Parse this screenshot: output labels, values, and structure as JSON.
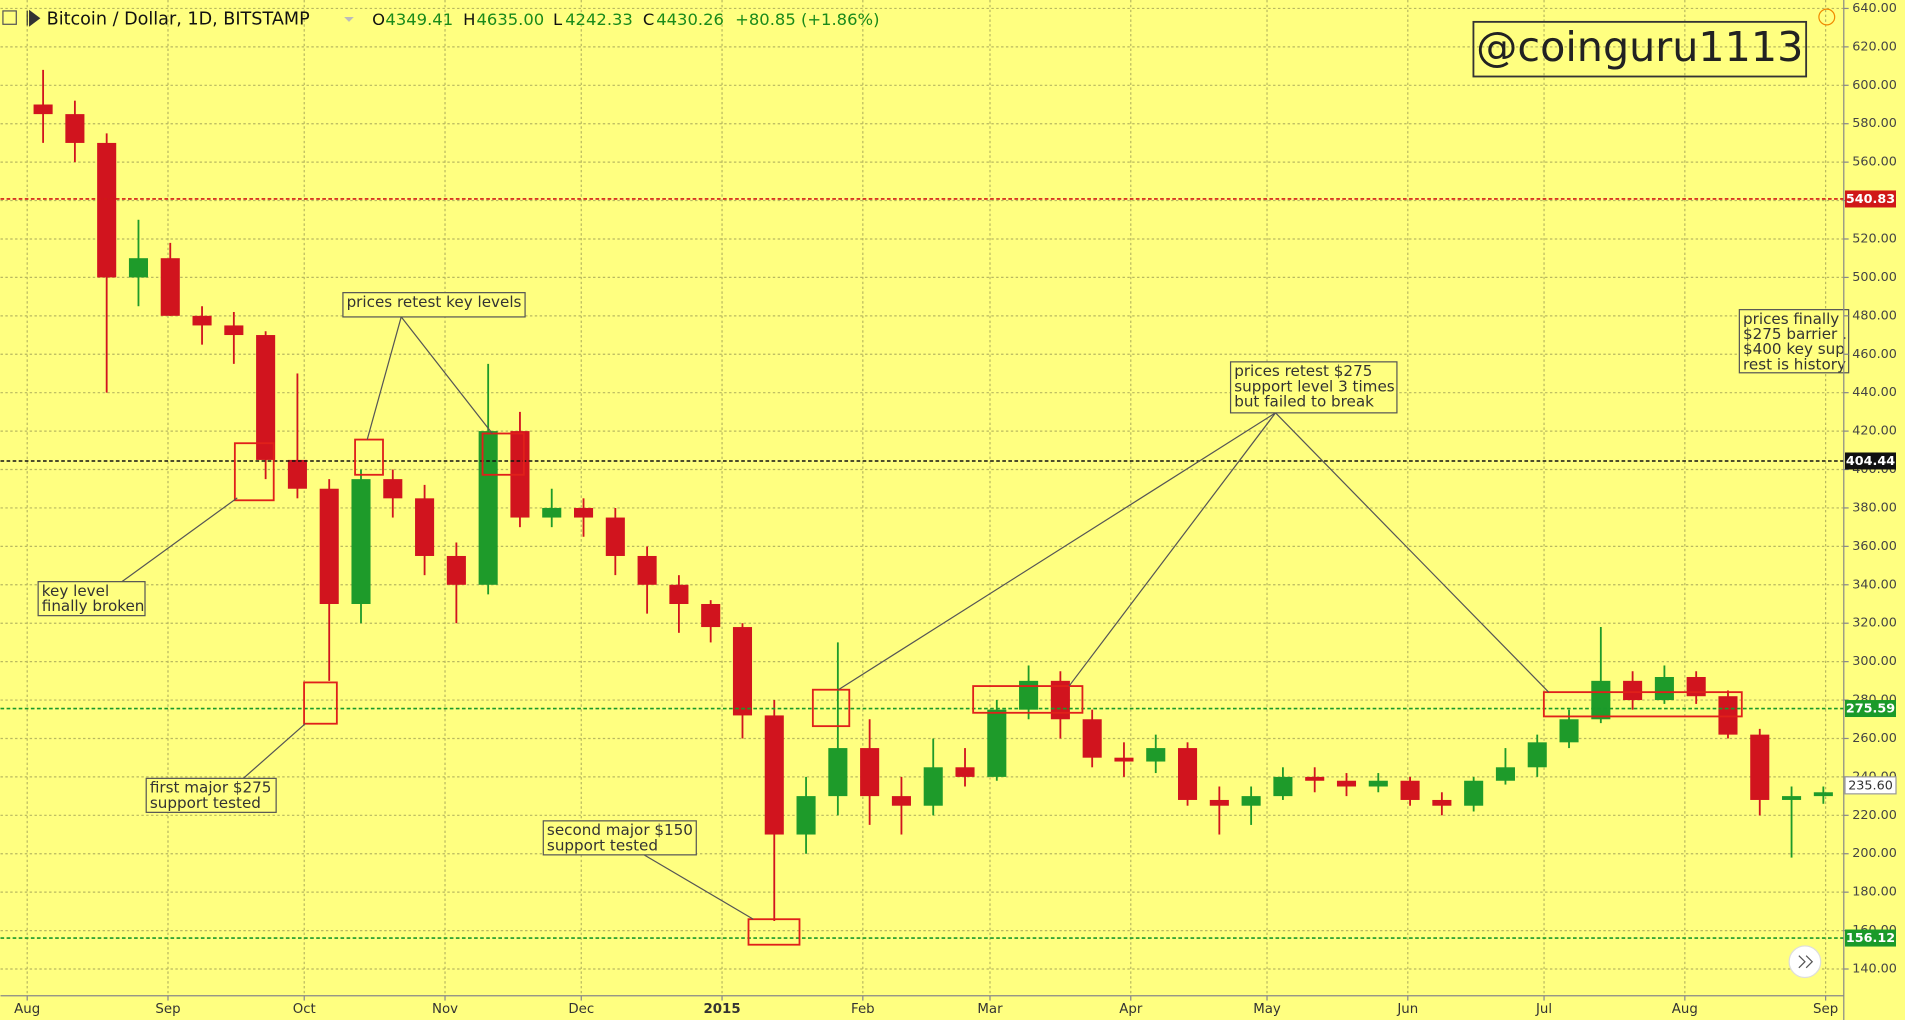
{
  "chart_data": {
    "type": "candlestick",
    "title": "Bitcoin / Dollar, 1D, BITSTAMP",
    "header": {
      "open_label": "O",
      "open": "4349.41",
      "high_label": "H",
      "high": "4635.00",
      "low_label": "L",
      "low": "4242.33",
      "close_label": "C",
      "close": "4430.26",
      "change": "+80.85 (+1.86%)"
    },
    "watermark": "@coinguru1113",
    "up_color": "#1e9b2a",
    "down_color": "#d1141e",
    "x": [
      3.5,
      10.5,
      17.5,
      24.5,
      31.5,
      38.5,
      45.5,
      52.5,
      59.5,
      66.5,
      73.5,
      80.5,
      87.5,
      94.5,
      101.5,
      108.5,
      115.5,
      122.5,
      129.5,
      136.5,
      143.5,
      150.5,
      157.5,
      164.5,
      171.5,
      178.5,
      185.5,
      192.5,
      199.5,
      206.5,
      213.5,
      220.5,
      227.5,
      234.5,
      241.5,
      248.5,
      255.5,
      262.5,
      269.5,
      276.5,
      283.5,
      290.5,
      297.5,
      304.5,
      311.5,
      318.5,
      325.5,
      332.5,
      339.5,
      346.5,
      353.5,
      360.5,
      367.5,
      374.5,
      381.5,
      388.5,
      395.5
    ],
    "open": [
      590,
      585,
      570,
      500,
      510,
      480,
      475,
      470,
      405,
      390,
      330,
      395,
      385,
      355,
      340,
      420,
      375,
      380,
      375,
      355,
      340,
      330,
      318,
      272,
      210,
      230,
      255,
      230,
      225,
      245,
      240,
      275,
      290,
      270,
      250,
      248,
      255,
      228,
      225,
      230,
      240,
      238,
      235,
      238,
      228,
      225,
      238,
      245,
      258,
      270,
      290,
      280,
      292,
      282,
      262,
      228,
      230
    ],
    "high": [
      608,
      592,
      575,
      530,
      518,
      485,
      482,
      472,
      450,
      395,
      400,
      400,
      392,
      362,
      455,
      430,
      390,
      385,
      380,
      360,
      345,
      332,
      320,
      280,
      240,
      310,
      270,
      240,
      260,
      255,
      280,
      298,
      295,
      275,
      258,
      262,
      258,
      235,
      235,
      245,
      245,
      242,
      242,
      240,
      232,
      240,
      255,
      262,
      275,
      318,
      295,
      298,
      295,
      285,
      265,
      235,
      235
    ],
    "low": [
      570,
      560,
      440,
      485,
      480,
      465,
      455,
      395,
      385,
      290,
      320,
      375,
      345,
      320,
      335,
      370,
      370,
      365,
      345,
      325,
      315,
      310,
      260,
      165,
      200,
      220,
      215,
      210,
      220,
      235,
      238,
      270,
      260,
      245,
      240,
      242,
      225,
      210,
      215,
      228,
      232,
      230,
      232,
      225,
      220,
      222,
      236,
      240,
      255,
      268,
      275,
      278,
      278,
      260,
      220,
      198,
      226
    ],
    "close": [
      585,
      570,
      500,
      510,
      480,
      475,
      470,
      405,
      390,
      330,
      395,
      385,
      355,
      340,
      420,
      375,
      380,
      375,
      355,
      340,
      330,
      318,
      272,
      210,
      230,
      255,
      230,
      225,
      245,
      240,
      275,
      290,
      270,
      250,
      248,
      255,
      228,
      225,
      230,
      240,
      238,
      235,
      238,
      228,
      225,
      238,
      245,
      258,
      270,
      290,
      280,
      292,
      282,
      262,
      228,
      230,
      232
    ],
    "xlim": [
      -5.88,
      400
    ],
    "xticks": [
      {
        "value": 0,
        "label": "Aug"
      },
      {
        "value": 31,
        "label": "Sep"
      },
      {
        "value": 61,
        "label": "Oct"
      },
      {
        "value": 92,
        "label": "Nov"
      },
      {
        "value": 122,
        "label": "Dec"
      },
      {
        "value": 153,
        "label": "2015"
      },
      {
        "value": 184,
        "label": "Feb"
      },
      {
        "value": 212,
        "label": "Mar"
      },
      {
        "value": 243,
        "label": "Apr"
      },
      {
        "value": 273,
        "label": "May"
      },
      {
        "value": 304,
        "label": "Jun"
      },
      {
        "value": 334,
        "label": "Jul"
      },
      {
        "value": 365,
        "label": "Aug"
      },
      {
        "value": 396,
        "label": "Sep"
      }
    ],
    "ylim": [
      126.1,
      644.4
    ],
    "yticks": [
      {
        "value": 140,
        "label": "140.00"
      },
      {
        "value": 160,
        "label": "160.00"
      },
      {
        "value": 180,
        "label": "180.00"
      },
      {
        "value": 200,
        "label": "200.00"
      },
      {
        "value": 220,
        "label": "220.00"
      },
      {
        "value": 240,
        "label": "240.00"
      },
      {
        "value": 260,
        "label": "260.00"
      },
      {
        "value": 280,
        "label": "280.00"
      },
      {
        "value": 300,
        "label": "300.00"
      },
      {
        "value": 320,
        "label": "320.00"
      },
      {
        "value": 340,
        "label": "340.00"
      },
      {
        "value": 360,
        "label": "360.00"
      },
      {
        "value": 380,
        "label": "380.00"
      },
      {
        "value": 400,
        "label": "400.00"
      },
      {
        "value": 420,
        "label": "420.00"
      },
      {
        "value": 440,
        "label": "440.00"
      },
      {
        "value": 460,
        "label": "460.00"
      },
      {
        "value": 480,
        "label": "480.00"
      },
      {
        "value": 500,
        "label": "500.00"
      },
      {
        "value": 520,
        "label": "520.00"
      },
      {
        "value": 540,
        "label": "540.00"
      },
      {
        "value": 560,
        "label": "560.00"
      },
      {
        "value": 580,
        "label": "580.00"
      },
      {
        "value": 600,
        "label": "600.00"
      },
      {
        "value": 620,
        "label": "620.00"
      },
      {
        "value": 640,
        "label": "640.00"
      }
    ],
    "grid": true,
    "hlines": [
      {
        "value": 540.83,
        "color": "#d01818"
      },
      {
        "value": 404.44,
        "color": "#111111"
      },
      {
        "value": 275.59,
        "color": "#1a9a2a"
      },
      {
        "value": 156.12,
        "color": "#1a9a2a"
      }
    ],
    "last_price": {
      "value": 235.6,
      "label": "235.60"
    },
    "annotations": [
      {
        "lines": [
          "prices retest key levels"
        ]
      },
      {
        "lines": [
          "key level",
          "finally broken"
        ]
      },
      {
        "lines": [
          "first major $275",
          "support tested"
        ]
      },
      {
        "lines": [
          "second major $150",
          "support tested"
        ]
      },
      {
        "lines": [
          "prices retest $275",
          "support level 3 times",
          "but failed to break"
        ]
      },
      {
        "lines": [
          "prices finally",
          "$275 barrier .",
          "$400 key sup",
          "rest is history"
        ]
      }
    ]
  }
}
